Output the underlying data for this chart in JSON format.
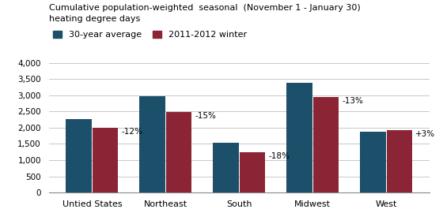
{
  "title_line1": "Cumulative population-weighted  seasonal  (November 1 - January 30)",
  "title_line2": "heating degree days",
  "categories": [
    "Untied States",
    "Northeast",
    "South",
    "Midwest",
    "West"
  ],
  "avg_values": [
    2260,
    2960,
    1535,
    3375,
    1870
  ],
  "winter_values": [
    1990,
    2490,
    1255,
    2940,
    1925
  ],
  "pct_labels": [
    "-12%",
    "-15%",
    "-18%",
    "-13%",
    "+3%"
  ],
  "color_avg": "#1b4f6a",
  "color_winter": "#8b2535",
  "legend_avg": "30-year average",
  "legend_winter": "2011-2012 winter",
  "ylim": [
    0,
    4000
  ],
  "yticks": [
    0,
    500,
    1000,
    1500,
    2000,
    2500,
    3000,
    3500,
    4000
  ],
  "background_color": "#ffffff",
  "grid_color": "#c8c8c8"
}
